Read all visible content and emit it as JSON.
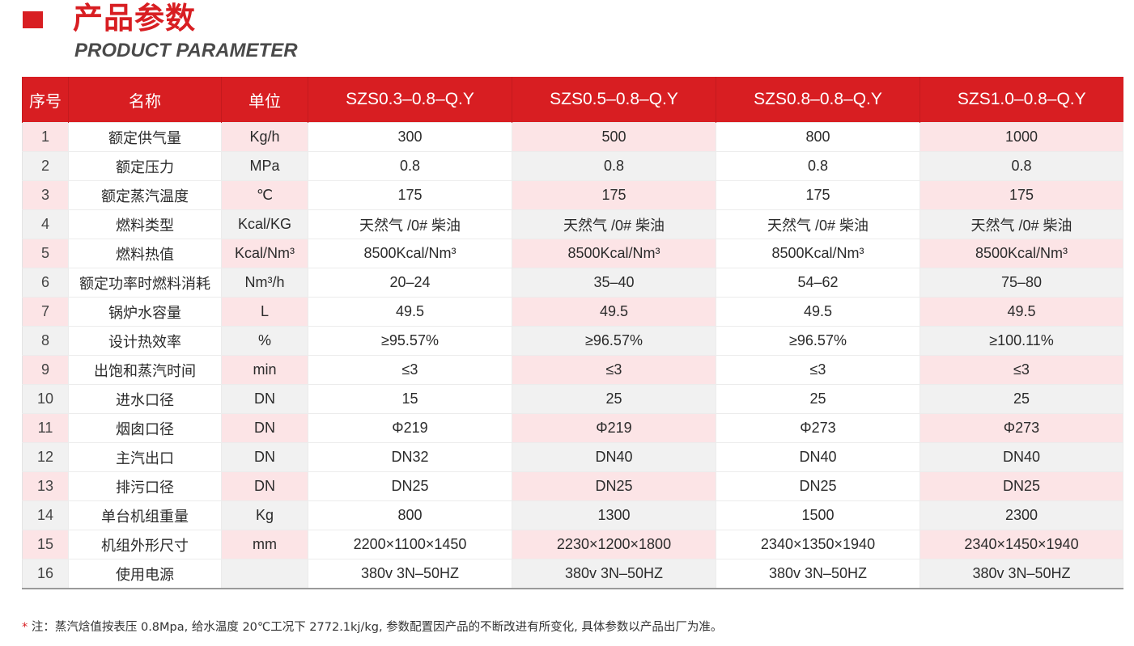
{
  "header": {
    "title": "产品参数",
    "subtitle": "PRODUCT PARAMETER",
    "accent_color": "#d81e22"
  },
  "table": {
    "columns": [
      "序号",
      "名称",
      "单位",
      "SZS0.3–0.8–Q.Y",
      "SZS0.5–0.8–Q.Y",
      "SZS0.8–0.8–Q.Y",
      "SZS1.0–0.8–Q.Y"
    ],
    "rows": [
      {
        "idx": "1",
        "name": "额定供气量",
        "unit": "Kg/h",
        "values": [
          "300",
          "500",
          "800",
          "1000"
        ]
      },
      {
        "idx": "2",
        "name": "额定压力",
        "unit": "MPa",
        "values": [
          "0.8",
          "0.8",
          "0.8",
          "0.8"
        ]
      },
      {
        "idx": "3",
        "name": "额定蒸汽温度",
        "unit": "℃",
        "values": [
          "175",
          "175",
          "175",
          "175"
        ]
      },
      {
        "idx": "4",
        "name": "燃料类型",
        "unit": "Kcal/KG",
        "values": [
          "天然气 /0# 柴油",
          "天然气 /0# 柴油",
          "天然气 /0# 柴油",
          "天然气 /0# 柴油"
        ]
      },
      {
        "idx": "5",
        "name": "燃料热值",
        "unit": "Kcal/Nm³",
        "values": [
          "8500Kcal/Nm³",
          "8500Kcal/Nm³",
          "8500Kcal/Nm³",
          "8500Kcal/Nm³"
        ]
      },
      {
        "idx": "6",
        "name": "额定功率时燃料消耗",
        "unit": "Nm³/h",
        "values": [
          "20–24",
          "35–40",
          "54–62",
          "75–80"
        ]
      },
      {
        "idx": "7",
        "name": "锅炉水容量",
        "unit": "L",
        "values": [
          "49.5",
          "49.5",
          "49.5",
          "49.5"
        ]
      },
      {
        "idx": "8",
        "name": "设计热效率",
        "unit": "%",
        "values": [
          "≥95.57%",
          "≥96.57%",
          "≥96.57%",
          "≥100.11%"
        ]
      },
      {
        "idx": "9",
        "name": "出饱和蒸汽时间",
        "unit": "min",
        "values": [
          "≤3",
          "≤3",
          "≤3",
          "≤3"
        ]
      },
      {
        "idx": "10",
        "name": "进水口径",
        "unit": "DN",
        "values": [
          "15",
          "25",
          "25",
          "25"
        ]
      },
      {
        "idx": "11",
        "name": "烟囱口径",
        "unit": "DN",
        "values": [
          "Φ219",
          "Φ219",
          "Φ273",
          "Φ273"
        ]
      },
      {
        "idx": "12",
        "name": "主汽出口",
        "unit": "DN",
        "values": [
          "DN32",
          "DN40",
          "DN40",
          "DN40"
        ]
      },
      {
        "idx": "13",
        "name": "排污口径",
        "unit": "DN",
        "values": [
          "DN25",
          "DN25",
          "DN25",
          "DN25"
        ]
      },
      {
        "idx": "14",
        "name": "单台机组重量",
        "unit": "Kg",
        "values": [
          "800",
          "1300",
          "1500",
          "2300"
        ]
      },
      {
        "idx": "15",
        "name": "机组外形尺寸",
        "unit": "mm",
        "values": [
          "2200×1100×1450",
          "2230×1200×1800",
          "2340×1350×1940",
          "2340×1450×1940"
        ]
      },
      {
        "idx": "16",
        "name": "使用电源",
        "unit": "",
        "values": [
          "380v 3N–50HZ",
          "380v 3N–50HZ",
          "380v 3N–50HZ",
          "380v 3N–50HZ"
        ]
      }
    ]
  },
  "note": {
    "star": "*",
    "text": " 注：蒸汽焓值按表压 0.8Mpa, 给水温度 20℃工况下 2772.1kj/kg, 参数配置因产品的不断改进有所变化, 具体参数以产品出厂为准。"
  }
}
